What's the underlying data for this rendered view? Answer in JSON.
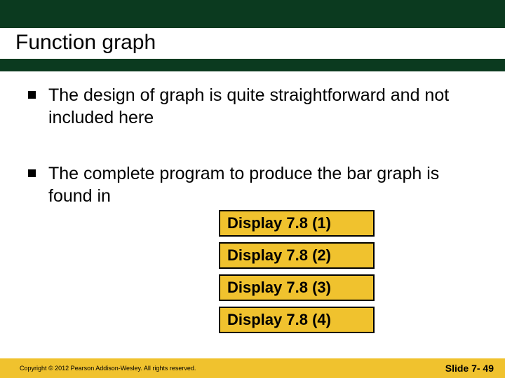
{
  "slide": {
    "title": "Function graph",
    "bullets": [
      "The design of graph is quite straightforward and not included here",
      "The complete program to produce the bar graph is found in"
    ],
    "display_boxes": [
      "Display 7.8 (1)",
      "Display 7.8 (2)",
      "Display 7.8 (3)",
      "Display 7.8 (4)"
    ],
    "footer": {
      "copyright": "Copyright © 2012 Pearson Addison-Wesley.  All rights reserved.",
      "slide_number": "Slide 7- 49"
    }
  },
  "colors": {
    "header_bg": "#0b3a1f",
    "box_bg": "#f0c22e",
    "footer_bg": "#f0c22e",
    "box_border": "#000000",
    "text": "#000000",
    "page_bg": "#ffffff"
  }
}
